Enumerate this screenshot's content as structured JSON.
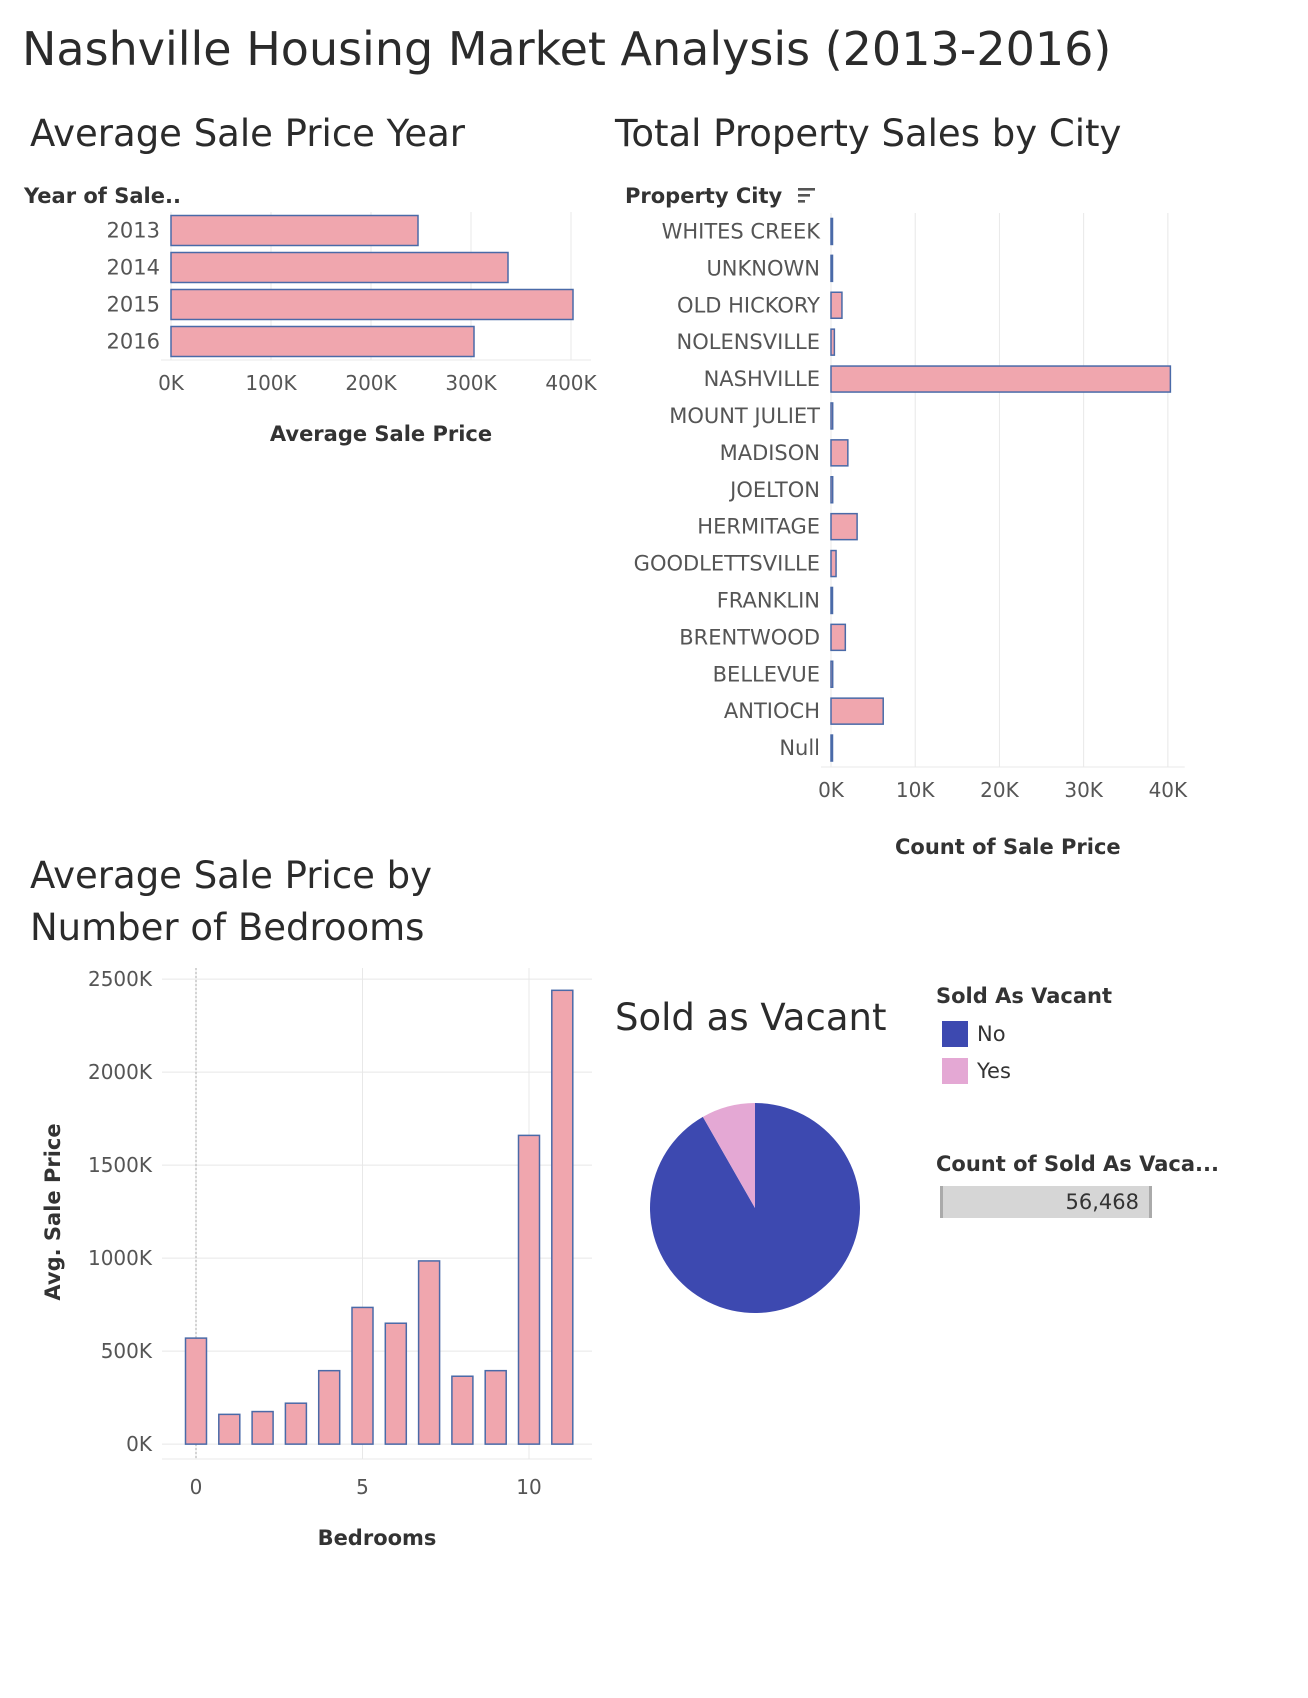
{
  "dashboard_title": "Nashville Housing Market Analysis (2013-2016)",
  "colors": {
    "bar_fill": "#f0a6ae",
    "bar_stroke": "#4a6aa8",
    "no": "#3d49b0",
    "yes": "#e4a8d4",
    "grid": "#e8e8e8",
    "text": "#333333"
  },
  "chart_data": [
    {
      "type": "bar",
      "orientation": "horizontal",
      "title": "Average Sale Price Year",
      "ylabel": "Year of Sale..",
      "xlabel": "Average Sale Price",
      "categories": [
        "2013",
        "2014",
        "2015",
        "2016"
      ],
      "values": [
        247000,
        337000,
        402000,
        303000
      ],
      "xlim": [
        0,
        420000
      ],
      "ticks": [
        0,
        100000,
        200000,
        300000,
        400000
      ],
      "tick_labels": [
        "0K",
        "100K",
        "200K",
        "300K",
        "400K"
      ],
      "grid": true
    },
    {
      "type": "bar",
      "orientation": "horizontal",
      "title": "Total Property Sales by City",
      "ylabel": "Property City",
      "xlabel": "Count of Sale Price",
      "categories": [
        "WHITES CREEK",
        "UNKNOWN",
        "OLD HICKORY",
        "NOLENSVILLE",
        "NASHVILLE",
        "MOUNT JULIET",
        "MADISON",
        "JOELTON",
        "HERMITAGE",
        "GOODLETTSVILLE",
        "FRANKLIN",
        "BRENTWOOD",
        "BELLEVUE",
        "ANTIOCH",
        "Null"
      ],
      "values": [
        100,
        20,
        1300,
        400,
        40300,
        200,
        2000,
        200,
        3100,
        600,
        100,
        1700,
        200,
        6200,
        20
      ],
      "xlim": [
        0,
        42000
      ],
      "ticks": [
        0,
        10000,
        20000,
        30000,
        40000
      ],
      "tick_labels": [
        "0K",
        "10K",
        "20K",
        "30K",
        "40K"
      ],
      "grid": true
    },
    {
      "type": "bar",
      "orientation": "vertical",
      "title": "Average Sale Price by Number of Bedrooms",
      "xlabel": "Bedrooms",
      "ylabel": "Avg. Sale Price",
      "x": [
        0,
        1,
        2,
        3,
        4,
        5,
        6,
        7,
        8,
        9,
        10,
        11
      ],
      "values": [
        570000,
        160000,
        175000,
        220000,
        395000,
        735000,
        650000,
        985000,
        365000,
        395000,
        1660000,
        2440000
      ],
      "ylim": [
        -80000,
        2560000
      ],
      "yticks": [
        0,
        500000,
        1000000,
        1500000,
        2000000,
        2500000
      ],
      "ytick_labels": [
        "0K",
        "500K",
        "1000K",
        "1500K",
        "2000K",
        "2500K"
      ],
      "xticks": [
        0,
        5,
        10
      ],
      "xtick_labels": [
        "0",
        "5",
        "10"
      ],
      "grid": true
    },
    {
      "type": "pie",
      "title": "Sold as Vacant",
      "legend_title": "Sold As Vacant",
      "categories": [
        "No",
        "Yes"
      ],
      "values": [
        51800,
        4668
      ],
      "legend_position": "right"
    }
  ],
  "summary": {
    "label": "Count of Sold As Vaca...",
    "value": "56,468"
  }
}
